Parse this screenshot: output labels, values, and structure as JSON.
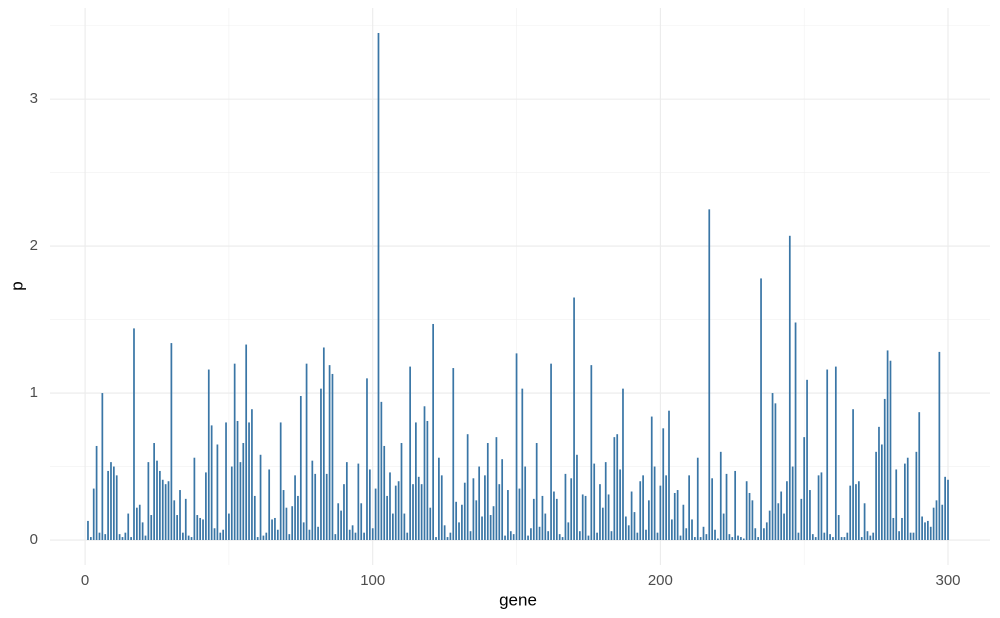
{
  "chart_data": {
    "type": "bar",
    "x_label": "gene",
    "y_label": "p",
    "color": "#3a76a6",
    "grid": true,
    "xlim": [
      -12.2,
      314.6
    ],
    "ylim": [
      -0.17,
      3.62
    ],
    "xticks": [
      0,
      100,
      200,
      300
    ],
    "yticks": [
      0,
      1,
      2,
      3
    ],
    "minor_xticks": [
      50,
      150,
      250
    ],
    "minor_yticks": [
      0.5,
      1.5,
      2.5,
      3.5
    ],
    "x": [
      1,
      2,
      3,
      4,
      5,
      6,
      7,
      8,
      9,
      10,
      11,
      12,
      13,
      14,
      15,
      16,
      17,
      18,
      19,
      20,
      21,
      22,
      23,
      24,
      25,
      26,
      27,
      28,
      29,
      30,
      31,
      32,
      33,
      34,
      35,
      36,
      37,
      38,
      39,
      40,
      41,
      42,
      43,
      44,
      45,
      46,
      47,
      48,
      49,
      50,
      51,
      52,
      53,
      54,
      55,
      56,
      57,
      58,
      59,
      60,
      61,
      62,
      63,
      64,
      65,
      66,
      67,
      68,
      69,
      70,
      71,
      72,
      73,
      74,
      75,
      76,
      77,
      78,
      79,
      80,
      81,
      82,
      83,
      84,
      85,
      86,
      87,
      88,
      89,
      90,
      91,
      92,
      93,
      94,
      95,
      96,
      97,
      98,
      99,
      100,
      101,
      102,
      103,
      104,
      105,
      106,
      107,
      108,
      109,
      110,
      111,
      112,
      113,
      114,
      115,
      116,
      117,
      118,
      119,
      120,
      121,
      122,
      123,
      124,
      125,
      126,
      127,
      128,
      129,
      130,
      131,
      132,
      133,
      134,
      135,
      136,
      137,
      138,
      139,
      140,
      141,
      142,
      143,
      144,
      145,
      146,
      147,
      148,
      149,
      150,
      151,
      152,
      153,
      154,
      155,
      156,
      157,
      158,
      159,
      160,
      161,
      162,
      163,
      164,
      165,
      166,
      167,
      168,
      169,
      170,
      171,
      172,
      173,
      174,
      175,
      176,
      177,
      178,
      179,
      180,
      181,
      182,
      183,
      184,
      185,
      186,
      187,
      188,
      189,
      190,
      191,
      192,
      193,
      194,
      195,
      196,
      197,
      198,
      199,
      200,
      201,
      202,
      203,
      204,
      205,
      206,
      207,
      208,
      209,
      210,
      211,
      212,
      213,
      214,
      215,
      216,
      217,
      218,
      219,
      220,
      221,
      222,
      223,
      224,
      225,
      226,
      227,
      228,
      229,
      230,
      231,
      232,
      233,
      234,
      235,
      236,
      237,
      238,
      239,
      240,
      241,
      242,
      243,
      244,
      245,
      246,
      247,
      248,
      249,
      250,
      251,
      252,
      253,
      254,
      255,
      256,
      257,
      258,
      259,
      260,
      261,
      262,
      263,
      264,
      265,
      266,
      267,
      268,
      269,
      270,
      271,
      272,
      273,
      274,
      275,
      276,
      277,
      278,
      279,
      280,
      281,
      282,
      283,
      284,
      285,
      286,
      287,
      288,
      289,
      290,
      291,
      292,
      293,
      294,
      295,
      296,
      297,
      298,
      299,
      300
    ],
    "values": [
      0.13,
      0.02,
      0.35,
      0.64,
      0.05,
      1.0,
      0.04,
      0.47,
      0.53,
      0.5,
      0.44,
      0.04,
      0.02,
      0.05,
      0.18,
      0.02,
      1.44,
      0.22,
      0.24,
      0.12,
      0.03,
      0.53,
      0.17,
      0.66,
      0.54,
      0.47,
      0.41,
      0.38,
      0.4,
      1.34,
      0.27,
      0.17,
      0.34,
      0.05,
      0.28,
      0.03,
      0.02,
      0.56,
      0.17,
      0.15,
      0.14,
      0.46,
      1.16,
      0.78,
      0.08,
      0.65,
      0.05,
      0.07,
      0.8,
      0.18,
      0.5,
      1.2,
      0.81,
      0.53,
      0.66,
      1.33,
      0.8,
      0.89,
      0.3,
      0.02,
      0.58,
      0.03,
      0.05,
      0.48,
      0.14,
      0.15,
      0.07,
      0.8,
      0.34,
      0.22,
      0.04,
      0.23,
      0.44,
      0.3,
      0.98,
      0.12,
      1.2,
      0.07,
      0.54,
      0.45,
      0.09,
      1.03,
      1.31,
      0.45,
      1.19,
      1.13,
      0.04,
      0.25,
      0.2,
      0.38,
      0.53,
      0.07,
      0.1,
      0.05,
      0.52,
      0.25,
      0.05,
      1.1,
      0.48,
      0.08,
      0.35,
      3.45,
      0.94,
      0.64,
      0.3,
      0.46,
      0.18,
      0.37,
      0.4,
      0.66,
      0.18,
      0.05,
      1.18,
      0.38,
      0.8,
      0.43,
      0.38,
      0.91,
      0.81,
      0.22,
      1.47,
      0.02,
      0.56,
      0.44,
      0.1,
      0.02,
      0.05,
      1.17,
      0.26,
      0.12,
      0.24,
      0.39,
      0.72,
      0.06,
      0.42,
      0.27,
      0.5,
      0.16,
      0.44,
      0.66,
      0.17,
      0.23,
      0.7,
      0.38,
      0.55,
      0.03,
      0.34,
      0.06,
      0.04,
      1.27,
      0.35,
      1.03,
      0.5,
      0.03,
      0.08,
      0.28,
      0.66,
      0.09,
      0.3,
      0.18,
      0.06,
      1.2,
      0.33,
      0.28,
      0.04,
      0.02,
      0.45,
      0.12,
      0.42,
      1.65,
      0.58,
      0.06,
      0.31,
      0.3,
      0.03,
      1.19,
      0.52,
      0.05,
      0.38,
      0.22,
      0.53,
      0.31,
      0.06,
      0.7,
      0.72,
      0.48,
      1.03,
      0.16,
      0.1,
      0.33,
      0.19,
      0.05,
      0.4,
      0.44,
      0.07,
      0.27,
      0.84,
      0.5,
      0.05,
      0.37,
      0.76,
      0.44,
      0.88,
      0.14,
      0.32,
      0.34,
      0.03,
      0.24,
      0.08,
      0.44,
      0.14,
      0.02,
      0.56,
      0.02,
      0.09,
      0.04,
      2.25,
      0.42,
      0.07,
      0.01,
      0.6,
      0.18,
      0.45,
      0.04,
      0.02,
      0.47,
      0.03,
      0.02,
      0.01,
      0.4,
      0.32,
      0.27,
      0.08,
      0.02,
      1.78,
      0.08,
      0.12,
      0.2,
      1.0,
      0.93,
      0.25,
      0.33,
      0.18,
      0.4,
      2.07,
      0.5,
      1.48,
      0.05,
      0.28,
      0.7,
      1.09,
      0.34,
      0.04,
      0.02,
      0.44,
      0.46,
      0.05,
      1.16,
      0.04,
      0.02,
      1.18,
      0.17,
      0.02,
      0.02,
      0.05,
      0.37,
      0.89,
      0.38,
      0.4,
      0.02,
      0.25,
      0.06,
      0.03,
      0.05,
      0.6,
      0.77,
      0.65,
      0.96,
      1.29,
      1.22,
      0.15,
      0.48,
      0.06,
      0.15,
      0.52,
      0.56,
      0.05,
      0.05,
      0.6,
      0.87,
      0.16,
      0.12,
      0.13,
      0.09,
      0.22,
      0.27,
      1.28,
      0.24,
      0.43,
      0.41
    ]
  }
}
